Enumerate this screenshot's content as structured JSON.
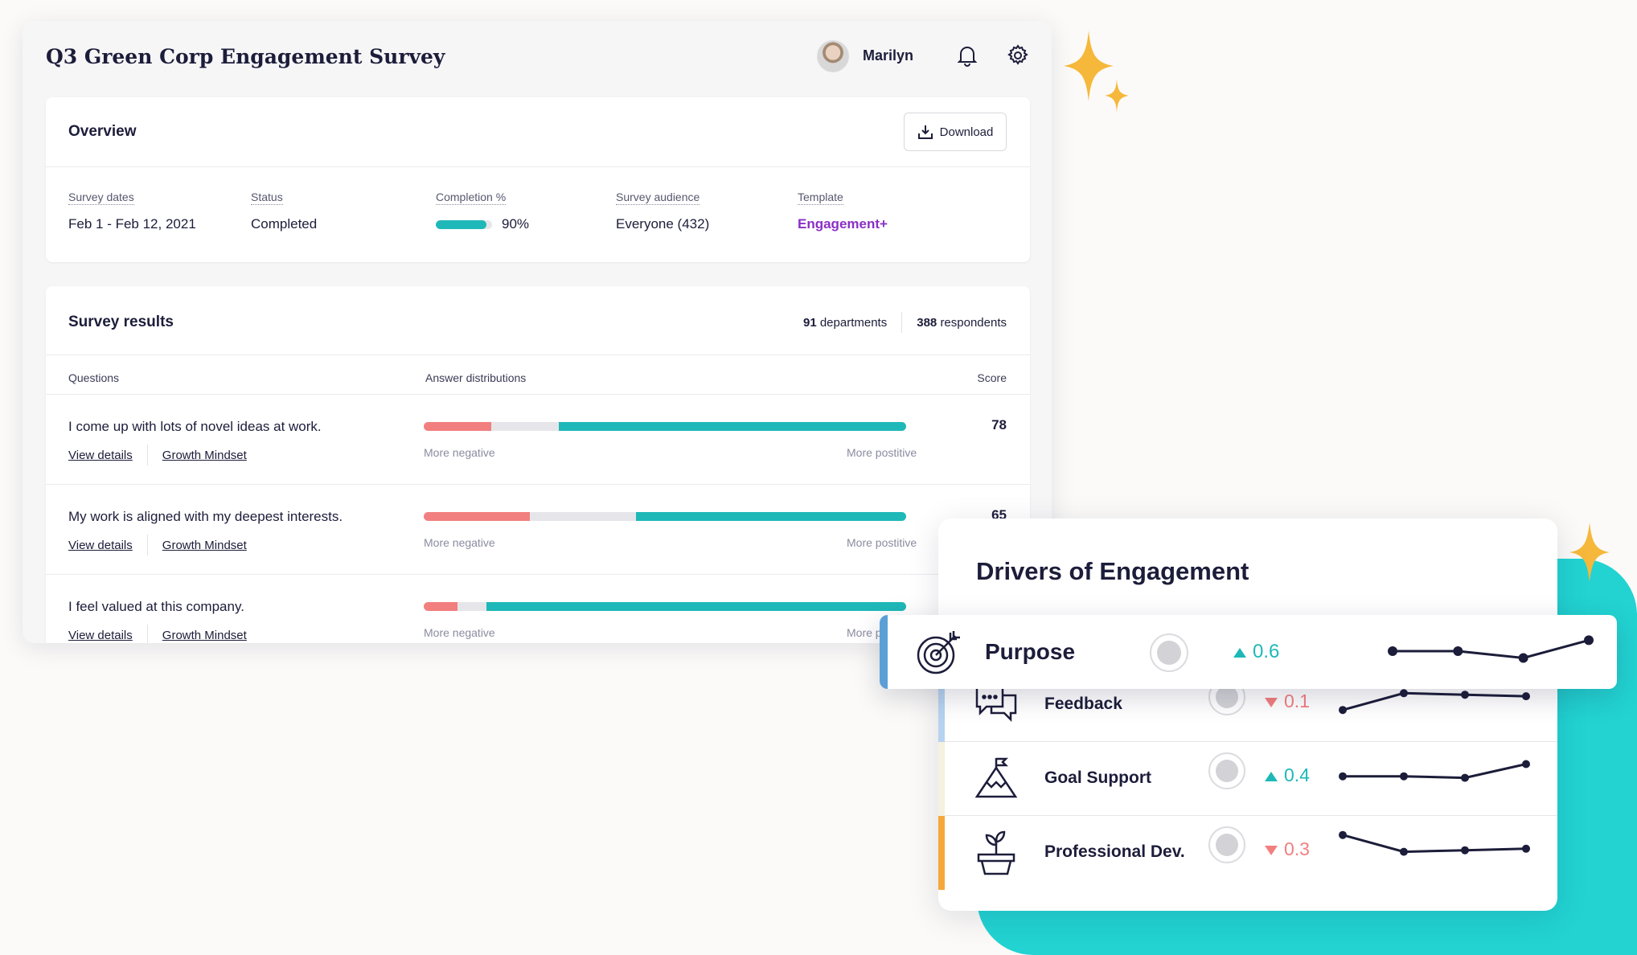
{
  "header": {
    "title": "Q3 Green Corp Engagement Survey",
    "user_name": "Marilyn"
  },
  "overview": {
    "title": "Overview",
    "download_label": "Download",
    "fields": {
      "survey_dates_label": "Survey dates",
      "survey_dates_value": "Feb 1 - Feb 12, 2021",
      "status_label": "Status",
      "status_value": "Completed",
      "completion_label": "Completion %",
      "completion_value": "90%",
      "completion_fraction": 0.9,
      "audience_label": "Survey audience",
      "audience_value": "Everyone (432)",
      "template_label": "Template",
      "template_value": "Engagement+"
    }
  },
  "results": {
    "title": "Survey results",
    "departments_count": "91",
    "departments_label": "departments",
    "respondents_count": "388",
    "respondents_label": "respondents",
    "columns": {
      "questions": "Questions",
      "distributions": "Answer distributions",
      "score": "Score"
    },
    "negative_label": "More negative",
    "positive_label": "More postitive",
    "view_details_label": "View details",
    "rows": [
      {
        "question": "I come up with lots of novel ideas at work.",
        "tag": "Growth Mindset",
        "score": "78",
        "dist": [
          0.14,
          0.14,
          0.72
        ]
      },
      {
        "question": "My work is aligned with my deepest interests.",
        "tag": "Growth Mindset",
        "score": "65",
        "dist": [
          0.22,
          0.22,
          0.56
        ]
      },
      {
        "question": "I feel valued at this company.",
        "tag": "Growth Mindset",
        "score": "",
        "dist": [
          0.07,
          0.06,
          0.87
        ]
      }
    ]
  },
  "drivers": {
    "title": "Drivers of Engagement",
    "items": [
      {
        "name": "Purpose",
        "direction": "up",
        "delta": "0.6",
        "icon": "target-icon",
        "trend": [
          0.5,
          0.5,
          0.25,
          0.9
        ],
        "accent": "#5b9fd6"
      },
      {
        "name": "Feedback",
        "direction": "down",
        "delta": "0.1",
        "icon": "chat-bubbles-icon",
        "trend": [
          0.1,
          0.65,
          0.6,
          0.55
        ],
        "accent": "#b6d3ef"
      },
      {
        "name": "Goal Support",
        "direction": "up",
        "delta": "0.4",
        "icon": "mountain-flag-icon",
        "trend": [
          0.35,
          0.35,
          0.3,
          0.75
        ],
        "accent": "#f4f1e0"
      },
      {
        "name": "Professional Dev.",
        "direction": "down",
        "delta": "0.3",
        "icon": "plant-pot-icon",
        "trend": [
          0.85,
          0.3,
          0.35,
          0.4
        ],
        "accent": "#f6a83a"
      }
    ]
  },
  "colors": {
    "teal": "#1fb8b8",
    "negative": "#f27f7f",
    "purpose_accent": "#5b9fd6",
    "prodev_accent": "#f6a83a",
    "up_color": "#1fb8b8",
    "down_color": "#f27f7f"
  }
}
